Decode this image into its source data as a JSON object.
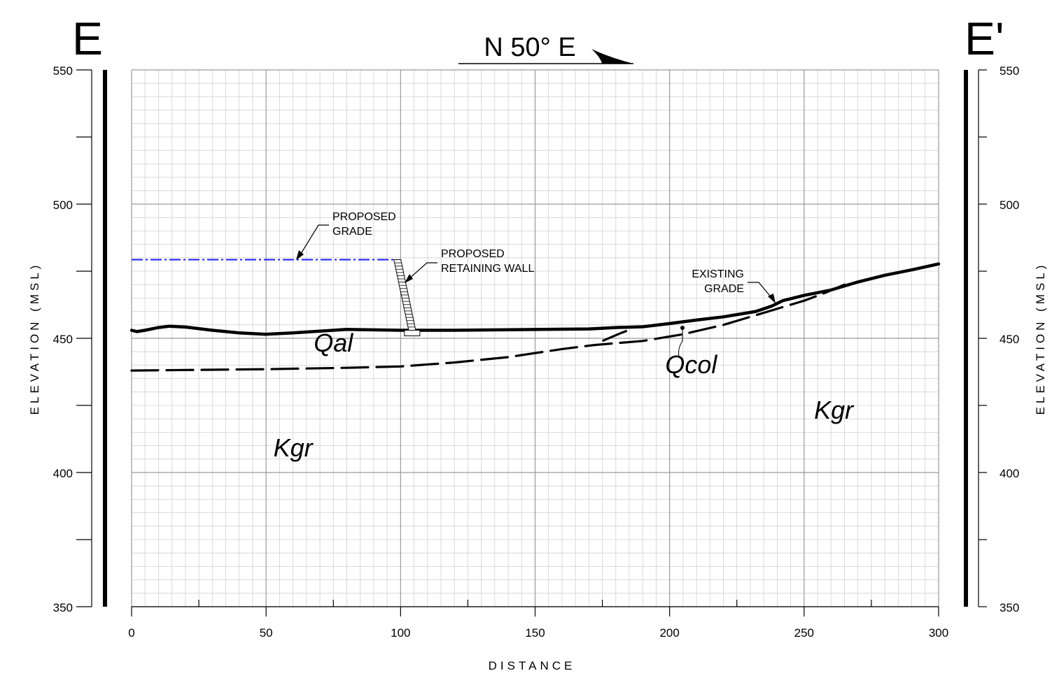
{
  "section": {
    "left_label": "E",
    "right_label": "E'",
    "bearing": "N 50° E"
  },
  "axes": {
    "xlabel": "DISTANCE",
    "ylabel": "ELEVATION (MSL)",
    "xlim": [
      0,
      300
    ],
    "ylim": [
      350,
      550
    ],
    "x_ticks": [
      0,
      50,
      100,
      150,
      200,
      250,
      300
    ],
    "y_ticks": [
      350,
      400,
      450,
      500,
      550
    ],
    "grid": true,
    "grid_minor_step": 5
  },
  "units": [
    {
      "id": "qal",
      "label": "Qal",
      "x": 75,
      "y": 445
    },
    {
      "id": "qcol",
      "label": "Qcol",
      "x": 208,
      "y": 437
    },
    {
      "id": "kgr-left",
      "label": "Kgr",
      "x": 60,
      "y": 406
    },
    {
      "id": "kgr-right",
      "label": "Kgr",
      "x": 261,
      "y": 420
    }
  ],
  "callouts": {
    "proposed_grade": {
      "lines": [
        "PROPOSED",
        "GRADE"
      ]
    },
    "retaining_wall": {
      "lines": [
        "PROPOSED",
        "RETAINING WALL"
      ]
    },
    "existing_grade": {
      "lines": [
        "EXISTING",
        "GRADE"
      ]
    }
  },
  "profiles": {
    "existing_grade": [
      [
        0,
        453
      ],
      [
        2,
        452.5
      ],
      [
        5,
        453
      ],
      [
        10,
        454
      ],
      [
        14,
        454.5
      ],
      [
        20,
        454.2
      ],
      [
        30,
        453
      ],
      [
        40,
        452
      ],
      [
        50,
        451.5
      ],
      [
        60,
        452
      ],
      [
        80,
        453.3
      ],
      [
        100,
        453
      ],
      [
        120,
        453
      ],
      [
        140,
        453.2
      ],
      [
        170,
        453.5
      ],
      [
        180,
        454
      ],
      [
        190,
        454.3
      ],
      [
        200,
        455.5
      ],
      [
        210,
        456.8
      ],
      [
        220,
        458
      ],
      [
        232,
        460
      ],
      [
        238,
        462
      ],
      [
        242,
        464
      ],
      [
        250,
        466
      ],
      [
        260,
        468
      ],
      [
        270,
        471
      ],
      [
        280,
        473.5
      ],
      [
        290,
        475.5
      ],
      [
        300,
        477.7
      ]
    ],
    "proposed_grade": [
      [
        0,
        479.3
      ],
      [
        60,
        479.3
      ],
      [
        98,
        479.3
      ]
    ],
    "kgr_contact": [
      [
        0,
        438
      ],
      [
        50,
        438.5
      ],
      [
        80,
        439
      ],
      [
        100,
        439.5
      ],
      [
        120,
        441
      ],
      [
        140,
        443
      ],
      [
        160,
        446
      ],
      [
        172,
        447.5
      ],
      [
        190,
        449
      ],
      [
        205,
        451.5
      ],
      [
        220,
        455
      ],
      [
        235,
        459.5
      ],
      [
        250,
        464
      ],
      [
        258,
        467
      ],
      [
        265,
        470
      ]
    ],
    "qcol_contact": [
      [
        175,
        449
      ],
      [
        182,
        452
      ],
      [
        186,
        453.5
      ]
    ],
    "retaining_wall": {
      "x_top": 97.5,
      "x_bottom": 103,
      "y_top": 479.3,
      "y_bottom": 453
    }
  }
}
